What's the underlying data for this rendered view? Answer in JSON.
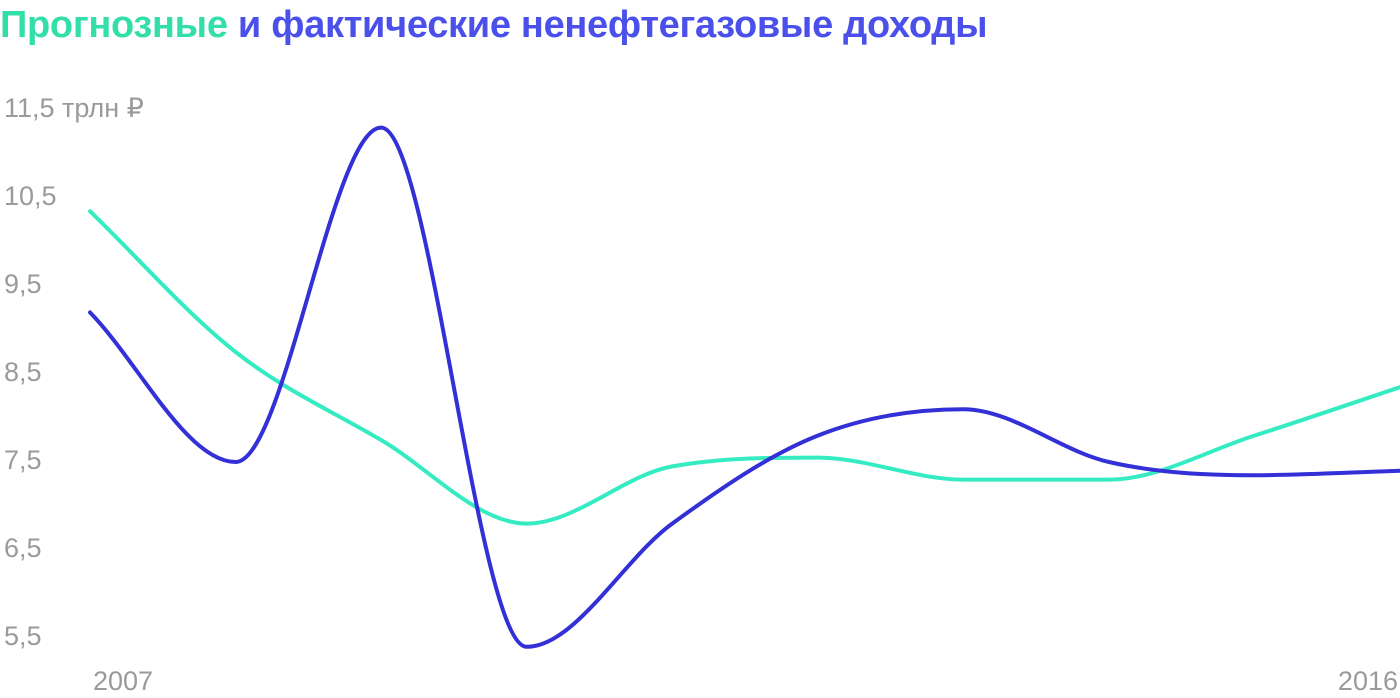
{
  "title": {
    "part1": "Прогнозные",
    "part2": "и фактические ненефтегазовые доходы"
  },
  "chart_data": {
    "type": "line",
    "title": "Прогнозные и фактические ненефтегазовые доходы",
    "xlim": [
      2007,
      2016
    ],
    "ylim": [
      5.5,
      11.5
    ],
    "y_ticks": [
      {
        "value": 11.5,
        "label": "11,5 трлн ₽"
      },
      {
        "value": 10.5,
        "label": "10,5"
      },
      {
        "value": 9.5,
        "label": "9,5"
      },
      {
        "value": 8.5,
        "label": "8,5"
      },
      {
        "value": 7.5,
        "label": "7,5"
      },
      {
        "value": 6.5,
        "label": "6,5"
      },
      {
        "value": 5.5,
        "label": "5,5"
      }
    ],
    "x_ticks": [
      {
        "value": 2007,
        "label": "2007"
      },
      {
        "value": 2016,
        "label": "2016"
      }
    ],
    "grid": false,
    "series": [
      {
        "color": "#35ecc2",
        "x": [
          2007,
          2008,
          2009,
          2010,
          2011,
          2012,
          2013,
          2014,
          2015,
          2016
        ],
        "values": [
          10.35,
          8.75,
          7.75,
          6.8,
          7.45,
          7.55,
          7.3,
          7.3,
          7.8,
          8.35
        ]
      },
      {
        "color": "#3230d6",
        "x": [
          2007,
          2008,
          2009,
          2010,
          2011,
          2012,
          2013,
          2014,
          2015,
          2016
        ],
        "values": [
          9.2,
          7.5,
          11.3,
          5.4,
          6.8,
          7.8,
          8.1,
          7.5,
          7.35,
          7.4
        ]
      }
    ]
  }
}
